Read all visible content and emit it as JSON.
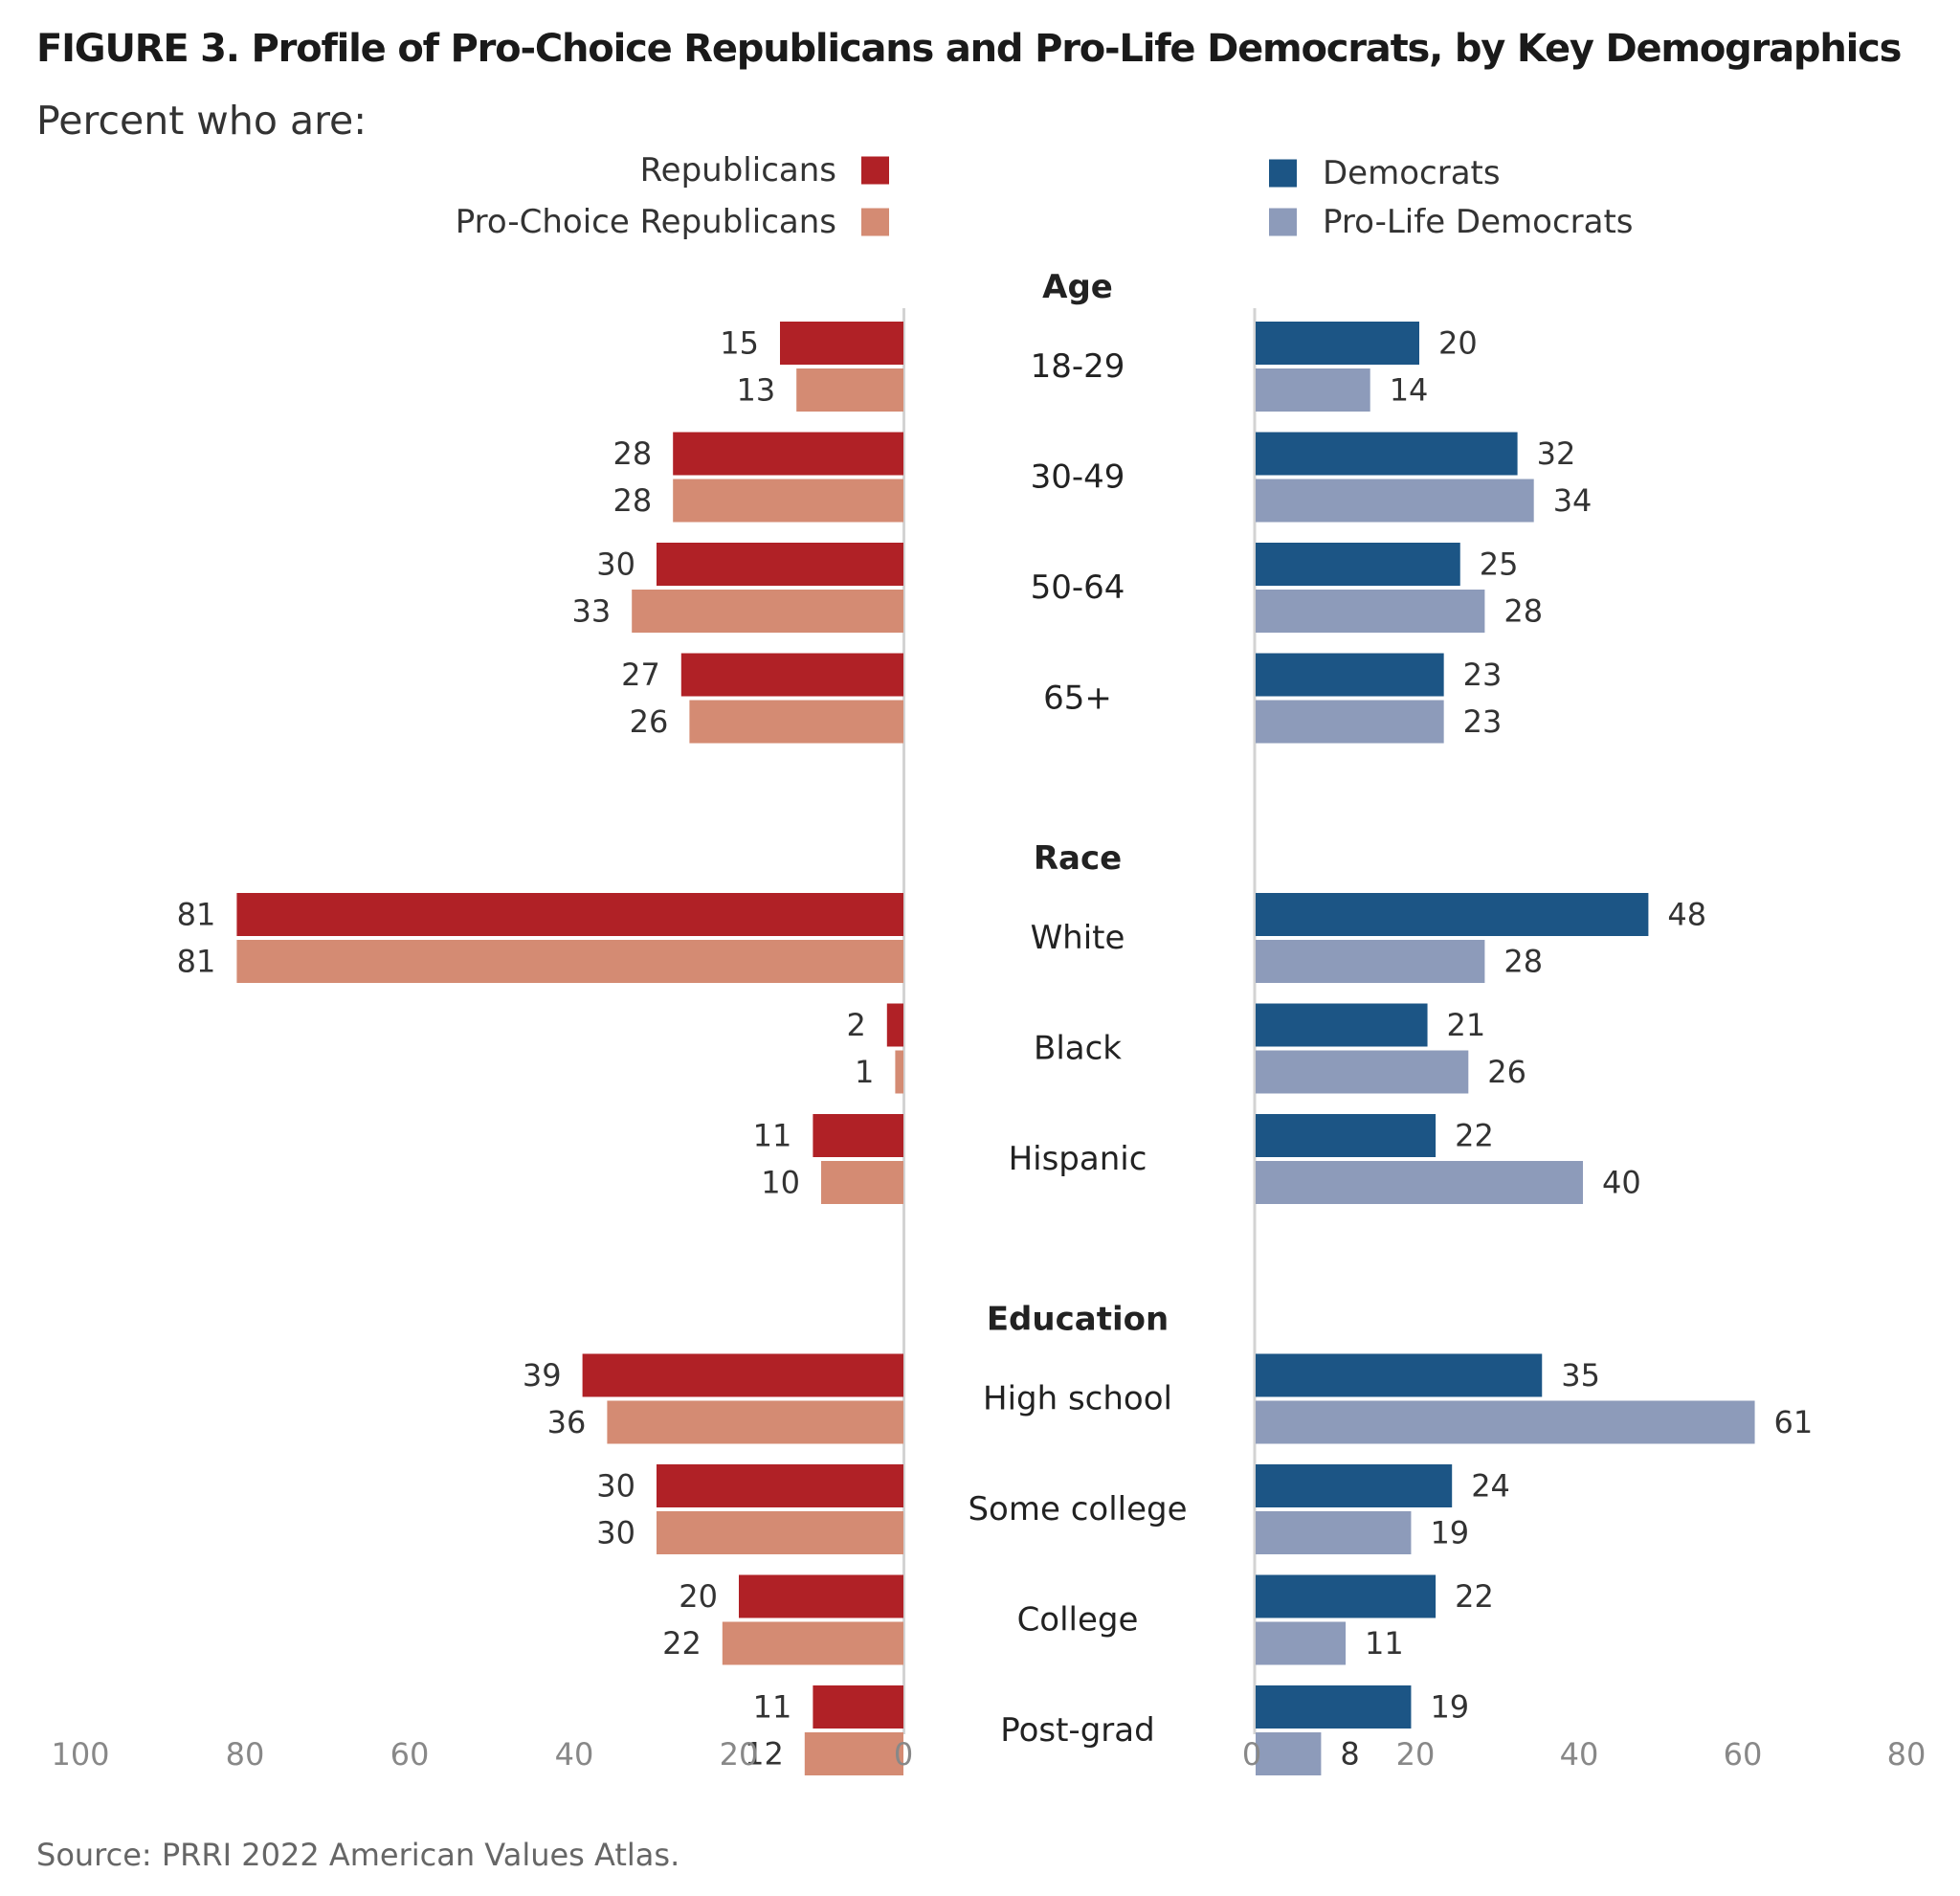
{
  "title": "FIGURE 3.  Profile of Pro-Choice Republicans and Pro-Life Democrats, by Key Demographics",
  "subtitle": "Percent who are:",
  "source": "Source: PRRI 2022 American Values Atlas.",
  "colors": {
    "republicans": "#b02126",
    "pro_choice_republicans": "#d48b73",
    "democrats": "#1c5585",
    "pro_life_democrats": "#8d9bba",
    "axis_line": "#d3d3d3",
    "value_label": "#333333",
    "tick_label": "#888888",
    "category_label": "#222222",
    "group_label": "#222222"
  },
  "chart_data": {
    "type": "bar",
    "orientation": "horizontal-diverging",
    "legend": {
      "left": [
        {
          "name": "Republicans",
          "color_key": "republicans"
        },
        {
          "name": "Pro-Choice Republicans",
          "color_key": "pro_choice_republicans"
        }
      ],
      "right": [
        {
          "name": "Democrats",
          "color_key": "democrats"
        },
        {
          "name": "Pro-Life Democrats",
          "color_key": "pro_life_democrats"
        }
      ]
    },
    "left_axis": {
      "range": [
        100,
        0
      ],
      "ticks": [
        100,
        80,
        60,
        40,
        20,
        0
      ]
    },
    "right_axis": {
      "range": [
        0,
        80
      ],
      "ticks": [
        0,
        20,
        40,
        60,
        80
      ]
    },
    "groups": [
      {
        "name": "Age",
        "categories": [
          "18-29",
          "30-49",
          "50-64",
          "65+"
        ],
        "series": [
          {
            "name": "Republicans",
            "values": [
              15,
              28,
              30,
              27
            ]
          },
          {
            "name": "Pro-Choice Republicans",
            "values": [
              13,
              28,
              33,
              26
            ]
          },
          {
            "name": "Democrats",
            "values": [
              20,
              32,
              25,
              23
            ]
          },
          {
            "name": "Pro-Life Democrats",
            "values": [
              14,
              34,
              28,
              23
            ]
          }
        ]
      },
      {
        "name": "Race",
        "categories": [
          "White",
          "Black",
          "Hispanic"
        ],
        "series": [
          {
            "name": "Republicans",
            "values": [
              81,
              2,
              11
            ]
          },
          {
            "name": "Pro-Choice Republicans",
            "values": [
              81,
              1,
              10
            ]
          },
          {
            "name": "Democrats",
            "values": [
              48,
              21,
              22
            ]
          },
          {
            "name": "Pro-Life Democrats",
            "values": [
              28,
              26,
              40
            ]
          }
        ]
      },
      {
        "name": "Education",
        "categories": [
          "High school",
          "Some college",
          "College",
          "Post-grad"
        ],
        "series": [
          {
            "name": "Republicans",
            "values": [
              39,
              30,
              20,
              11
            ]
          },
          {
            "name": "Pro-Choice Republicans",
            "values": [
              36,
              30,
              22,
              12
            ]
          },
          {
            "name": "Democrats",
            "values": [
              35,
              24,
              22,
              19
            ]
          },
          {
            "name": "Pro-Life Democrats",
            "values": [
              61,
              19,
              11,
              8
            ]
          }
        ]
      }
    ]
  }
}
